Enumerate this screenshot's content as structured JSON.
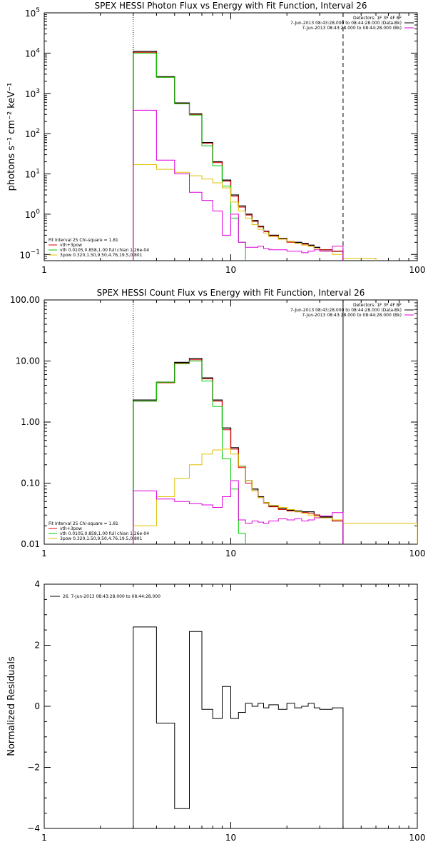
{
  "chart_data": [
    {
      "type": "line",
      "title": "SPEX HESSI Photon Flux vs Energy with Fit Function, Interval 26",
      "xlabel": "",
      "ylabel": "photons s⁻¹ cm⁻² keV⁻¹",
      "xscale": "log",
      "yscale": "log",
      "xlim": [
        1,
        100
      ],
      "ylim": [
        0.07,
        100000
      ],
      "x_ticks": [
        {
          "v": 1,
          "label": "1"
        },
        {
          "v": 10,
          "label": "10"
        },
        {
          "v": 100,
          "label": "100"
        }
      ],
      "y_ticks": [
        {
          "v": 0.1,
          "base": "10",
          "exp": "−1"
        },
        {
          "v": 1,
          "base": "10",
          "exp": "0"
        },
        {
          "v": 10,
          "base": "10",
          "exp": "1"
        },
        {
          "v": 100,
          "base": "10",
          "exp": "2"
        },
        {
          "v": 1000,
          "base": "10",
          "exp": "3"
        },
        {
          "v": 10000,
          "base": "10",
          "exp": "4"
        },
        {
          "v": 100000,
          "base": "10",
          "exp": "5"
        }
      ],
      "vlines": [
        {
          "x": 3.0,
          "style": "dotted"
        },
        {
          "x": 40.0,
          "style": "dashed"
        }
      ],
      "legend_top_right": [
        {
          "text": "Detectors: 1F 3F 4F 8F",
          "color": ""
        },
        {
          "text": "7-Jun-2013 08:43:28.000 to 08:44:28.000 (Data-Bk)",
          "color": "#000000"
        },
        {
          "text": "7-Jun-2013 08:43:28.000 to 08:44:28.000 (Bk)",
          "color": "#e000e0"
        }
      ],
      "legend_bottom_left": [
        {
          "text": "Fit Interval 25    Chi-square = 1.81",
          "color": ""
        },
        {
          "text": "vth+3pow",
          "color": "#e00000"
        },
        {
          "text": "vth 0.0105,0.858,1.00   full chian 1.26e-04",
          "color": "#00cc00"
        },
        {
          "text": "3pow 0.320,1.50,9.50,4.76,19.5,0.801",
          "color": "#e0c000"
        }
      ],
      "edges": [
        3,
        4,
        5,
        6,
        7,
        8,
        9,
        10,
        11,
        12,
        13,
        14,
        15,
        16,
        18,
        20,
        22,
        24,
        26,
        28,
        30,
        35,
        40
      ],
      "series": [
        {
          "name": "Data-Bk",
          "color": "#000000",
          "width": 1.3,
          "x_end": 40,
          "values": [
            11000,
            2600,
            580,
            310,
            60,
            20,
            7,
            3.0,
            1.6,
            1.0,
            0.7,
            0.5,
            0.38,
            0.3,
            0.25,
            0.21,
            0.2,
            0.19,
            0.17,
            0.15,
            0.13,
            0.12
          ]
        },
        {
          "name": "vth+3pow",
          "color": "#e00000",
          "width": 1.0,
          "x_end": 40,
          "values": [
            10500,
            2500,
            560,
            300,
            58,
            19,
            6.6,
            2.8,
            1.5,
            0.95,
            0.65,
            0.48,
            0.37,
            0.29,
            0.24,
            0.2,
            0.19,
            0.18,
            0.16,
            0.14,
            0.13,
            0.12
          ]
        },
        {
          "name": "vth",
          "color": "#00cc00",
          "width": 1.0,
          "x_end": 12,
          "values": [
            10000,
            2500,
            550,
            290,
            50,
            16,
            5,
            0.8,
            0.2
          ]
        },
        {
          "name": "3pow",
          "color": "#e0c000",
          "width": 1.0,
          "x_end": 60,
          "values": [
            17,
            13,
            11,
            9,
            7.5,
            6,
            4.5,
            2.0,
            1.2,
            0.8,
            0.55,
            0.42,
            0.34,
            0.28,
            0.24,
            0.21,
            0.19,
            0.17,
            0.16,
            0.14,
            0.12,
            0.1,
            0.08
          ]
        },
        {
          "name": "Bk",
          "color": "#e000e0",
          "width": 1.0,
          "x_end": 40,
          "values": [
            380,
            22,
            10,
            3.5,
            2.2,
            1.2,
            0.3,
            1.0,
            0.2,
            0.15,
            0.15,
            0.16,
            0.14,
            0.13,
            0.13,
            0.12,
            0.12,
            0.11,
            0.12,
            0.13,
            0.12,
            0.16
          ]
        }
      ]
    },
    {
      "type": "line",
      "title": "SPEX HESSI Count Flux vs Energy with Fit Function, Interval 26",
      "xlabel": "",
      "ylabel": "",
      "xscale": "log",
      "yscale": "log",
      "xlim": [
        1,
        100
      ],
      "ylim": [
        0.01,
        100
      ],
      "x_ticks": [
        {
          "v": 1,
          "label": "1"
        },
        {
          "v": 10,
          "label": "10"
        },
        {
          "v": 100,
          "label": "100"
        }
      ],
      "y_ticks": [
        {
          "v": 0.01,
          "label": "0.01"
        },
        {
          "v": 0.1,
          "label": "0.10"
        },
        {
          "v": 1,
          "label": "1.00"
        },
        {
          "v": 10,
          "label": "10.00"
        },
        {
          "v": 100,
          "label": "100.00"
        }
      ],
      "vlines": [
        {
          "x": 3.0,
          "style": "dotted"
        },
        {
          "x": 40.0,
          "style": "solid"
        }
      ],
      "legend_top_right": [
        {
          "text": "Detectors: 1F 3F 4F 8F",
          "color": ""
        },
        {
          "text": "7-Jun-2013 08:43:28.000 to 08:44:28.000 (Data-Bk)",
          "color": "#000000"
        },
        {
          "text": "7-Jun-2013 08:43:28.000 to 08:44:28.000 (Bk)",
          "color": "#e000e0"
        }
      ],
      "legend_bottom_left": [
        {
          "text": "Fit Interval 25    Chi-square = 1.81",
          "color": ""
        },
        {
          "text": "vth+3pow",
          "color": "#e00000"
        },
        {
          "text": "vth 0.0105,0.858,1.00   full chian 1.26e-04",
          "color": "#00cc00"
        },
        {
          "text": "3pow 0.320,1.50,9.50,4.76,19.5,0.801",
          "color": "#e0c000"
        }
      ],
      "edges": [
        3,
        4,
        5,
        6,
        7,
        8,
        9,
        10,
        11,
        12,
        13,
        14,
        15,
        16,
        18,
        20,
        22,
        24,
        26,
        28,
        30,
        35,
        40
      ],
      "series": [
        {
          "name": "Data-Bk",
          "color": "#000000",
          "width": 1.3,
          "x_end": 40,
          "values": [
            2.3,
            4.5,
            9.5,
            11,
            5.3,
            2.3,
            0.8,
            0.38,
            0.19,
            0.11,
            0.08,
            0.06,
            0.048,
            0.042,
            0.038,
            0.036,
            0.035,
            0.034,
            0.034,
            0.03,
            0.028,
            0.024
          ]
        },
        {
          "name": "vth+3pow",
          "color": "#e00000",
          "width": 1.0,
          "x_end": 40,
          "values": [
            2.2,
            4.4,
            9.2,
            10.5,
            5.1,
            2.2,
            0.75,
            0.36,
            0.18,
            0.1,
            0.075,
            0.058,
            0.047,
            0.041,
            0.037,
            0.035,
            0.034,
            0.033,
            0.032,
            0.03,
            0.027,
            0.024
          ]
        },
        {
          "name": "vth",
          "color": "#00cc00",
          "width": 1.0,
          "x_end": 12,
          "values": [
            2.2,
            4.5,
            9.0,
            10.0,
            4.7,
            1.8,
            0.25,
            0.08,
            0.015
          ]
        },
        {
          "name": "3pow",
          "color": "#e0c000",
          "width": 1.0,
          "x_end": 100,
          "values": [
            0.02,
            0.06,
            0.12,
            0.2,
            0.3,
            0.35,
            0.36,
            0.3,
            0.19,
            0.11,
            0.075,
            0.058,
            0.048,
            0.043,
            0.04,
            0.037,
            0.034,
            0.032,
            0.03,
            0.028,
            0.027,
            0.025,
            0.022
          ]
        },
        {
          "name": "Bk",
          "color": "#e000e0",
          "width": 1.0,
          "x_end": 40,
          "values": [
            0.075,
            0.055,
            0.05,
            0.046,
            0.044,
            0.04,
            0.06,
            0.11,
            0.025,
            0.022,
            0.024,
            0.023,
            0.022,
            0.024,
            0.026,
            0.025,
            0.026,
            0.024,
            0.025,
            0.027,
            0.029,
            0.033
          ]
        }
      ]
    },
    {
      "type": "line",
      "title": "",
      "xlabel": "",
      "ylabel": "Normalized Residuals",
      "xscale": "log",
      "yscale": "linear",
      "xlim": [
        1,
        100
      ],
      "ylim": [
        -4,
        4
      ],
      "x_ticks": [
        {
          "v": 1,
          "label": "1"
        },
        {
          "v": 10,
          "label": "10"
        },
        {
          "v": 100,
          "label": "100"
        }
      ],
      "y_ticks": [
        {
          "v": -4,
          "label": "−4"
        },
        {
          "v": -2,
          "label": "−2"
        },
        {
          "v": 0,
          "label": "0"
        },
        {
          "v": 2,
          "label": "2"
        },
        {
          "v": 4,
          "label": "4"
        }
      ],
      "legend_top_left": "26.  7-Jun-2013 08:43:28.000 to 08:44:28.000",
      "edges": [
        3,
        4,
        5,
        6,
        7,
        8,
        9,
        10,
        11,
        12,
        13,
        14,
        15,
        16,
        18,
        20,
        22,
        24,
        26,
        28,
        30,
        35,
        40
      ],
      "series": [
        {
          "name": "",
          "color": "#000000",
          "width": 1.0,
          "x_end": 40,
          "values": [
            2.6,
            -0.55,
            -3.35,
            2.45,
            -0.1,
            -0.4,
            0.65,
            -0.4,
            -0.2,
            0.1,
            0.0,
            0.1,
            -0.05,
            0.05,
            -0.1,
            0.1,
            -0.05,
            0.0,
            0.1,
            -0.05,
            -0.1,
            -0.05
          ]
        }
      ]
    }
  ]
}
